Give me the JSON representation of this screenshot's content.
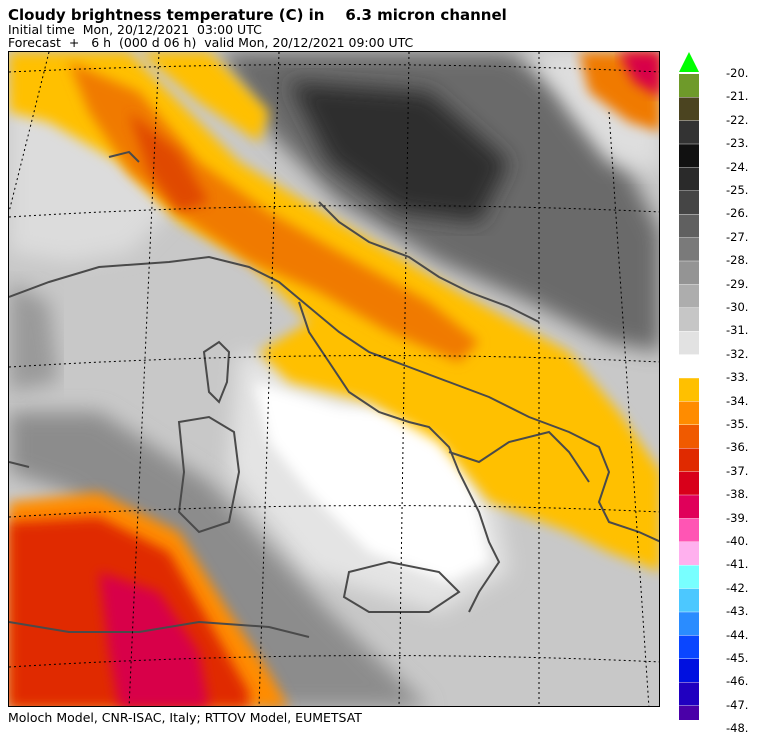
{
  "header": {
    "title": "Cloudy brightness temperature (C) in    6.3 micron channel",
    "initial_time": "Initial time  Mon, 20/12/2021  03:00 UTC",
    "forecast": "Forecast  +   6 h  (000 d 06 h)  valid Mon, 20/12/2021 09:00 UTC"
  },
  "footer": {
    "credit": "Moloch Model, CNR-ISAC, Italy; RTTOV Model, EUMETSAT"
  },
  "legend": {
    "labels": [
      "-20.",
      "-21.",
      "-22.",
      "-23.",
      "-24.",
      "-25.",
      "-26.",
      "-27.",
      "-28.",
      "-29.",
      "-30.",
      "-31.",
      "-32.",
      "-33.",
      "-34.",
      "-35.",
      "-36.",
      "-37.",
      "-38.",
      "-39.",
      "-40.",
      "-41.",
      "-42.",
      "-43.",
      "-44.",
      "-45.",
      "-46.",
      "-47.",
      "-48."
    ],
    "colors": [
      "#6e9a2a",
      "#4b4420",
      "#333333",
      "#111111",
      "#2a2a2a",
      "#454545",
      "#606060",
      "#7a7a7a",
      "#949494",
      "#adadad",
      "#c6c6c6",
      "#e2e2e2",
      "#ffffff",
      "#ffc000",
      "#ff8c00",
      "#f05a00",
      "#e02a00",
      "#d8001a",
      "#e0005a",
      "#ff55b4",
      "#ffb0ee",
      "#78ffff",
      "#4cc8ff",
      "#2a8cff",
      "#0a46ff",
      "#0010e0",
      "#2000c0",
      "#4a00a8"
    ],
    "top_arrow_color": "#00ff00",
    "bottom_arrow_color": "#3a0090"
  },
  "colors": {
    "band_orange": "#ffc000",
    "band_dark_orange": "#f07a00",
    "warm_red": "#e02a00",
    "magenta": "#e0005a",
    "coast": "#4a4a4a"
  }
}
